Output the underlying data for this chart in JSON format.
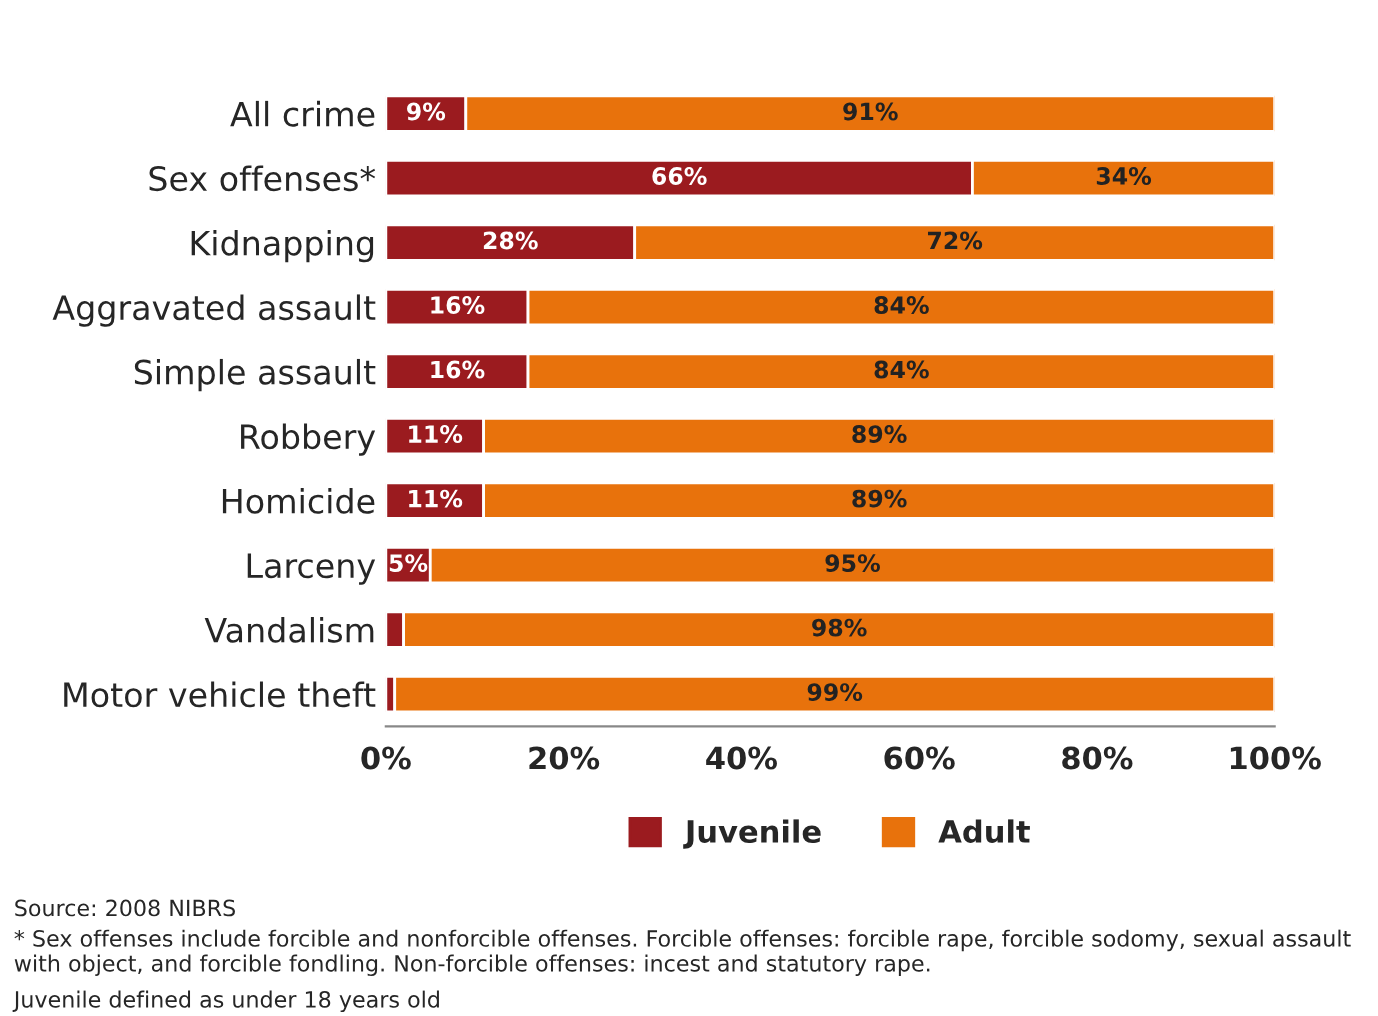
{
  "chart_data": {
    "type": "bar",
    "orientation": "horizontal",
    "stacked": true,
    "categories": [
      "All crime",
      "Sex offenses*",
      "Kidnapping",
      "Aggravated assault",
      "Simple assault",
      "Robbery",
      "Homicide",
      "Larceny",
      "Vandalism",
      "Motor vehicle theft"
    ],
    "series": [
      {
        "name": "Juvenile",
        "color": "#9b1b1f",
        "values": [
          9,
          66,
          28,
          16,
          16,
          11,
          11,
          5,
          2,
          1
        ],
        "value_labels": [
          "9%",
          "66%",
          "28%",
          "16%",
          "16%",
          "11%",
          "11%",
          "5%",
          null,
          null
        ]
      },
      {
        "name": "Adult",
        "color": "#e8720c",
        "values": [
          91,
          34,
          72,
          84,
          84,
          89,
          89,
          95,
          98,
          99
        ],
        "value_labels": [
          "91%",
          "34%",
          "72%",
          "84%",
          "84%",
          "89%",
          "89%",
          "95%",
          "98%",
          "99%"
        ]
      }
    ],
    "xlim": [
      0,
      100
    ],
    "xticks": [
      {
        "value": 0,
        "label": "0%"
      },
      {
        "value": 20,
        "label": "20%"
      },
      {
        "value": 40,
        "label": "40%"
      },
      {
        "value": 60,
        "label": "60%"
      },
      {
        "value": 80,
        "label": "80%"
      },
      {
        "value": 100,
        "label": "100%"
      }
    ],
    "grid": false,
    "legend": "bottom",
    "annotations": [
      "Source: 2008 NIBRS",
      "* Sex offenses include forcible and nonforcible offenses. Forcible offenses: forcible rape, forcible sodomy, sexual assault with object, and forcible fondling. Non-forcible offenses: incest and statutory rape.",
      "Juvenile defined as under 18 years old"
    ]
  }
}
